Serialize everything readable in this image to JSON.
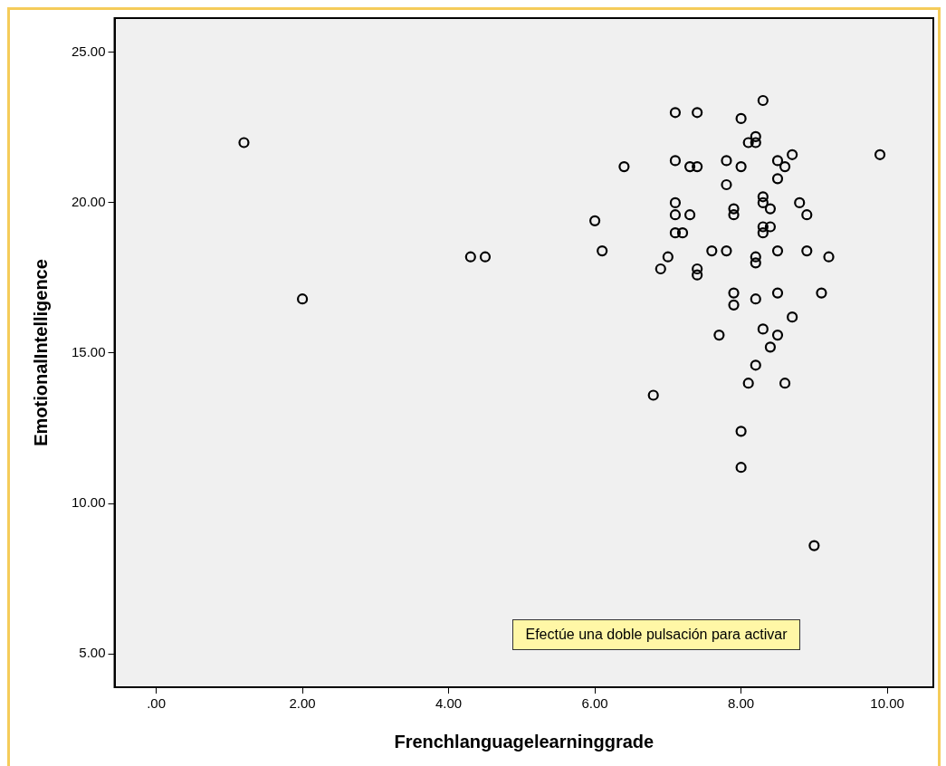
{
  "chart_data": {
    "type": "scatter",
    "xlabel": "Frenchlanguagelearninggrade",
    "ylabel": "EmotionalIntelligence",
    "annotations": [
      "Efectúe una doble pulsación para activar"
    ],
    "xlim": [
      -0.57,
      10.63
    ],
    "ylim": [
      3.89,
      26.14
    ],
    "xticks": [
      {
        "value": 0,
        "label": ".00"
      },
      {
        "value": 2,
        "label": "2.00"
      },
      {
        "value": 4,
        "label": "4.00"
      },
      {
        "value": 6,
        "label": "6.00"
      },
      {
        "value": 8,
        "label": "8.00"
      },
      {
        "value": 10,
        "label": "10.00"
      }
    ],
    "yticks": [
      {
        "value": 5,
        "label": "5.00"
      },
      {
        "value": 10,
        "label": "10.00"
      },
      {
        "value": 15,
        "label": "15.00"
      },
      {
        "value": 20,
        "label": "20.00"
      },
      {
        "value": 25,
        "label": "25.00"
      }
    ],
    "grid": false,
    "legend": false,
    "marker": "circle",
    "series": [
      {
        "color": "#000000",
        "x": [
          1.2,
          2.0,
          4.3,
          4.5,
          6.0,
          6.1,
          6.4,
          6.8,
          6.9,
          7.0,
          7.1,
          7.4,
          7.1,
          7.3,
          7.4,
          7.1,
          7.1,
          7.3,
          7.1,
          7.2,
          7.4,
          7.4,
          7.6,
          7.7,
          7.8,
          7.8,
          7.8,
          7.9,
          7.9,
          7.9,
          7.9,
          8.0,
          8.0,
          8.0,
          8.0,
          8.1,
          8.2,
          8.2,
          8.2,
          8.2,
          8.2,
          8.2,
          8.1,
          8.3,
          8.3,
          8.3,
          8.3,
          8.3,
          8.4,
          8.4,
          8.3,
          8.4,
          8.5,
          8.5,
          8.6,
          8.7,
          8.5,
          8.5,
          8.5,
          8.7,
          8.6,
          8.8,
          8.9,
          8.9,
          9.1,
          9.2,
          9.0,
          9.9
        ],
        "values": [
          22.0,
          16.8,
          18.2,
          18.2,
          19.4,
          18.4,
          21.2,
          13.6,
          17.8,
          18.2,
          23.0,
          23.0,
          21.4,
          21.2,
          21.2,
          20.0,
          19.6,
          19.6,
          19.0,
          19.0,
          17.8,
          17.6,
          18.4,
          15.6,
          21.4,
          20.6,
          18.4,
          19.8,
          19.6,
          17.0,
          16.6,
          22.8,
          21.2,
          12.4,
          11.2,
          22.0,
          22.2,
          22.0,
          18.2,
          18.0,
          16.8,
          14.6,
          14.0,
          23.4,
          20.2,
          20.0,
          19.2,
          19.0,
          19.8,
          19.2,
          15.8,
          15.2,
          21.4,
          20.8,
          21.2,
          21.6,
          18.4,
          17.0,
          15.6,
          16.2,
          14.0,
          20.0,
          19.6,
          18.4,
          17.0,
          18.2,
          8.6,
          21.6
        ]
      }
    ]
  }
}
